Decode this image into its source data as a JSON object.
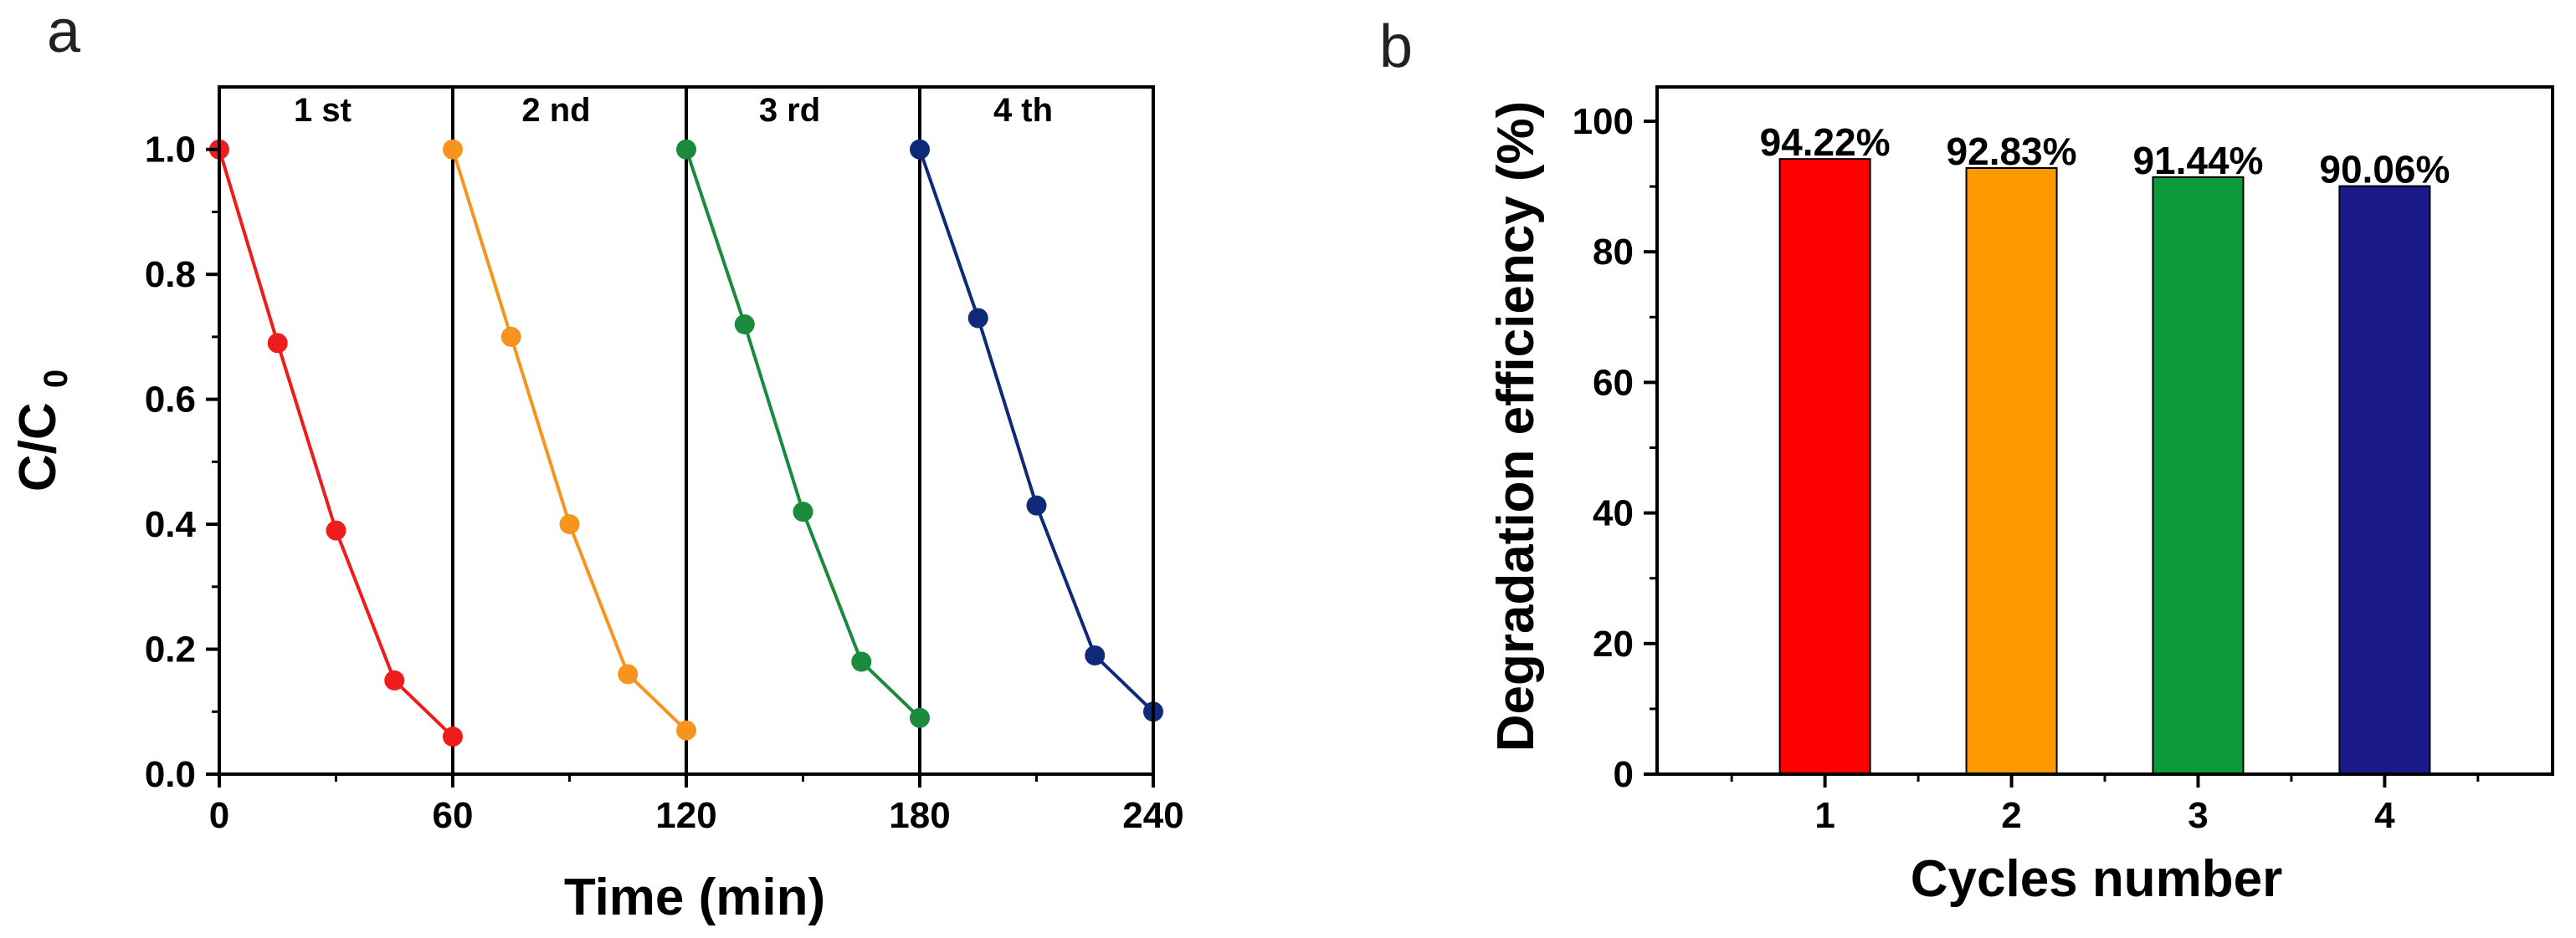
{
  "panels": {
    "a": {
      "label": "a"
    },
    "b": {
      "label": "b"
    }
  },
  "chart_data": [
    {
      "type": "line",
      "panel": "a",
      "xlabel": "Time (min)",
      "ylabel_main": "C/C",
      "ylabel_sub": "0",
      "xlim": [
        0,
        240
      ],
      "ylim": [
        0,
        1.1
      ],
      "xticks": [
        0,
        60,
        120,
        180,
        240
      ],
      "yticks": [
        0.0,
        0.2,
        0.4,
        0.6,
        0.8,
        1.0
      ],
      "ytick_labels": [
        "0.0",
        "0.2",
        "0.4",
        "0.6",
        "0.8",
        "1.0"
      ],
      "cycle_boundaries": [
        60,
        120,
        180
      ],
      "cycle_labels": [
        "1 st",
        "2 nd",
        "3 rd",
        "4 th"
      ],
      "series": [
        {
          "name": "1 st",
          "color": "#ee1c1c",
          "x": [
            0,
            15,
            30,
            45,
            60
          ],
          "y": [
            1.0,
            0.69,
            0.39,
            0.15,
            0.06
          ]
        },
        {
          "name": "2 nd",
          "color": "#f7941d",
          "x": [
            60,
            75,
            90,
            105,
            120
          ],
          "y": [
            1.0,
            0.7,
            0.4,
            0.16,
            0.07
          ]
        },
        {
          "name": "3 rd",
          "color": "#1a8a3c",
          "x": [
            120,
            135,
            150,
            165,
            180
          ],
          "y": [
            1.0,
            0.72,
            0.42,
            0.18,
            0.09
          ]
        },
        {
          "name": "4 th",
          "color": "#0f2a7a",
          "x": [
            180,
            195,
            210,
            225,
            240
          ],
          "y": [
            1.0,
            0.73,
            0.43,
            0.19,
            0.1
          ]
        }
      ]
    },
    {
      "type": "bar",
      "panel": "b",
      "xlabel": "Cycles number",
      "ylabel": "Degradation efficiency (%)",
      "categories": [
        "1",
        "2",
        "3",
        "4"
      ],
      "values": [
        94.22,
        92.83,
        91.44,
        90.06
      ],
      "value_labels": [
        "94.22%",
        "92.83%",
        "91.44%",
        "90.06%"
      ],
      "colors": [
        "#ff0000",
        "#ff9900",
        "#0a9a3a",
        "#1a1a8a"
      ],
      "ylim": [
        0,
        100
      ],
      "yticks": [
        0,
        20,
        40,
        60,
        80,
        100
      ]
    }
  ]
}
